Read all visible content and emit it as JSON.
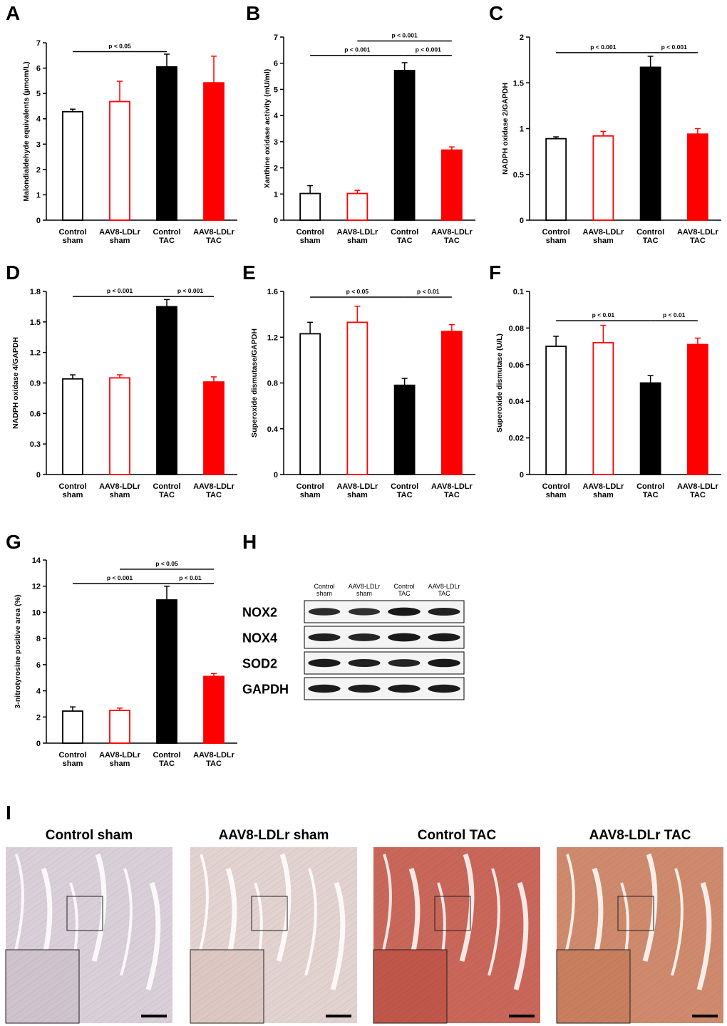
{
  "panel_labels": {
    "a": "A",
    "b": "B",
    "c": "C",
    "d": "D",
    "e": "E",
    "f": "F",
    "g": "G",
    "h": "H",
    "i": "I"
  },
  "colors": {
    "black": "#000000",
    "red": "#ff0000",
    "white": "#ffffff"
  },
  "chart_data": [
    {
      "id": "A",
      "type": "bar",
      "ylabel": "Malondialdehyde equivalents (µmom/L)",
      "categories": [
        "Control\nsham",
        "AAV8-LDLr\nsham",
        "Control\nTAC",
        "AAV8-LDLr\nTAC"
      ],
      "values": [
        4.28,
        4.68,
        6.05,
        5.42
      ],
      "errors": [
        0.1,
        0.8,
        0.5,
        1.05
      ],
      "fills": [
        "white",
        "white",
        "black",
        "red"
      ],
      "strokes": [
        "black",
        "red",
        "black",
        "red"
      ],
      "ylim": [
        0,
        7
      ],
      "yticks": [
        "0",
        "1",
        "2",
        "3",
        "4",
        "5",
        "6",
        "7"
      ],
      "comparisons": [
        {
          "from": 0,
          "to": 2,
          "level": 6.65,
          "label": "p < 0.05"
        }
      ]
    },
    {
      "id": "B",
      "type": "bar",
      "ylabel": "Xanthine oxidase activity (mU/ml)",
      "categories": [
        "Control\nsham",
        "AAV8-LDLr\nsham",
        "Control\nTAC",
        "AAV8-LDLr\nTAC"
      ],
      "values": [
        1.02,
        1.02,
        5.72,
        2.68
      ],
      "errors": [
        0.3,
        0.12,
        0.3,
        0.12
      ],
      "fills": [
        "white",
        "white",
        "black",
        "red"
      ],
      "strokes": [
        "black",
        "red",
        "black",
        "red"
      ],
      "ylim": [
        0,
        7
      ],
      "yticks": [
        "0",
        "1",
        "2",
        "3",
        "4",
        "5",
        "6",
        "7"
      ],
      "comparisons": [
        {
          "from": 0,
          "to": 2,
          "level": 6.3,
          "label": "p < 0.001"
        },
        {
          "from": 2,
          "to": 3,
          "level": 6.3,
          "label": "p < 0.001"
        },
        {
          "from": 1,
          "to": 3,
          "level": 6.85,
          "label": "p < 0.001"
        }
      ]
    },
    {
      "id": "C",
      "type": "bar",
      "ylabel": "NADPH oxidase 2/GAPDH",
      "categories": [
        "Control\nsham",
        "AAV8-LDLr\nsham",
        "Control\nTAC",
        "AAV8-LDLr\nTAC"
      ],
      "values": [
        0.89,
        0.92,
        1.67,
        0.94
      ],
      "errors": [
        0.02,
        0.05,
        0.12,
        0.06
      ],
      "fills": [
        "white",
        "white",
        "black",
        "red"
      ],
      "strokes": [
        "black",
        "red",
        "black",
        "red"
      ],
      "ylim": [
        0,
        2
      ],
      "yticks": [
        "0",
        "0.5",
        "1",
        "1.5",
        "2"
      ],
      "comparisons": [
        {
          "from": 0,
          "to": 2,
          "level": 1.83,
          "label": "p < 0.001"
        },
        {
          "from": 2,
          "to": 3,
          "level": 1.83,
          "label": "p < 0.001"
        }
      ]
    },
    {
      "id": "D",
      "type": "bar",
      "ylabel": "NADPH oxidase 4/GAPDH",
      "categories": [
        "Control\nsham",
        "AAV8-LDLr\nsham",
        "Control\nTAC",
        "AAV8-LDLr\nTAC"
      ],
      "values": [
        0.94,
        0.95,
        1.65,
        0.91
      ],
      "errors": [
        0.04,
        0.03,
        0.07,
        0.05
      ],
      "fills": [
        "white",
        "white",
        "black",
        "red"
      ],
      "strokes": [
        "black",
        "red",
        "black",
        "red"
      ],
      "ylim": [
        0,
        1.8
      ],
      "yticks": [
        "0",
        "0.3",
        "0.6",
        "0.9",
        "1.2",
        "1.5",
        "1.8"
      ],
      "comparisons": [
        {
          "from": 0,
          "to": 2,
          "level": 1.75,
          "label": "p < 0.001"
        },
        {
          "from": 2,
          "to": 3,
          "level": 1.75,
          "label": "p < 0.001"
        }
      ]
    },
    {
      "id": "E",
      "type": "bar",
      "ylabel": "Superoxide dismutase/GAPDH",
      "categories": [
        "Control\nsham",
        "AAV8-LDLr\nsham",
        "Control\nTAC",
        "AAV8-LDLr\nTAC"
      ],
      "values": [
        1.23,
        1.33,
        0.78,
        1.25
      ],
      "errors": [
        0.1,
        0.14,
        0.06,
        0.06
      ],
      "fills": [
        "white",
        "white",
        "black",
        "red"
      ],
      "strokes": [
        "black",
        "red",
        "black",
        "red"
      ],
      "ylim": [
        0,
        1.6
      ],
      "yticks": [
        "0",
        "0.4",
        "0.8",
        "1.2",
        "1.6"
      ],
      "comparisons": [
        {
          "from": 0,
          "to": 2,
          "level": 1.55,
          "label": "p < 0.05"
        },
        {
          "from": 2,
          "to": 3,
          "level": 1.55,
          "label": "p < 0.01"
        }
      ]
    },
    {
      "id": "F",
      "type": "bar",
      "ylabel": "Superoxide dismutase (U/L)",
      "categories": [
        "Control\nsham",
        "AAV8-LDLr\nsham",
        "Control\nTAC",
        "AAV8-LDLr\nTAC"
      ],
      "values": [
        0.07,
        0.072,
        0.05,
        0.071
      ],
      "errors": [
        0.0055,
        0.0095,
        0.004,
        0.0035
      ],
      "fills": [
        "white",
        "white",
        "black",
        "red"
      ],
      "strokes": [
        "black",
        "red",
        "black",
        "red"
      ],
      "ylim": [
        0,
        0.1
      ],
      "yticks": [
        "0",
        "0.02",
        "0.04",
        "0.06",
        "0.08",
        "0.1"
      ],
      "comparisons": [
        {
          "from": 0,
          "to": 2,
          "level": 0.084,
          "label": "p < 0.01"
        },
        {
          "from": 2,
          "to": 3,
          "level": 0.084,
          "label": "p < 0.01"
        }
      ]
    },
    {
      "id": "G",
      "type": "bar",
      "ylabel": "3-nitrotyrosine positive area (%)",
      "categories": [
        "Control\nsham",
        "AAV8-LDLr\nsham",
        "Control\nTAC",
        "AAV8-LDLr\nTAC"
      ],
      "values": [
        2.45,
        2.5,
        10.95,
        5.1
      ],
      "errors": [
        0.32,
        0.18,
        1.05,
        0.22
      ],
      "fills": [
        "white",
        "white",
        "black",
        "red"
      ],
      "strokes": [
        "black",
        "red",
        "black",
        "red"
      ],
      "ylim": [
        0,
        14
      ],
      "yticks": [
        "0",
        "2",
        "4",
        "6",
        "8",
        "10",
        "12",
        "14"
      ],
      "comparisons": [
        {
          "from": 0,
          "to": 2,
          "level": 12.2,
          "label": "p < 0.001"
        },
        {
          "from": 2,
          "to": 3,
          "level": 12.2,
          "label": "p < 0.01"
        },
        {
          "from": 1,
          "to": 3,
          "level": 13.3,
          "label": "p < 0.05"
        }
      ]
    }
  ],
  "blot": {
    "columns": [
      "Control\nsham",
      "AAV8-LDLr\nsham",
      "Control\nTAC",
      "AAV8-LDLr\nTAC"
    ],
    "rows": [
      {
        "label": "NOX2",
        "intensity": [
          0.75,
          0.7,
          0.95,
          0.85
        ]
      },
      {
        "label": "NOX4",
        "intensity": [
          0.85,
          0.8,
          0.95,
          0.9
        ]
      },
      {
        "label": "SOD2",
        "intensity": [
          0.9,
          0.85,
          0.8,
          0.92
        ]
      },
      {
        "label": "GAPDH",
        "intensity": [
          0.9,
          0.88,
          0.9,
          0.9
        ]
      }
    ]
  },
  "histology": {
    "titles": [
      "Control sham",
      "AAV8-LDLr sham",
      "Control TAC",
      "AAV8-LDLr TAC"
    ],
    "tints": [
      "#d9cfd8",
      "#e2d2d0",
      "#c9675a",
      "#cf8a6e"
    ],
    "insets": [
      "#cfc3cd",
      "#dcc7c3",
      "#c0574a",
      "#c77f5f"
    ]
  }
}
